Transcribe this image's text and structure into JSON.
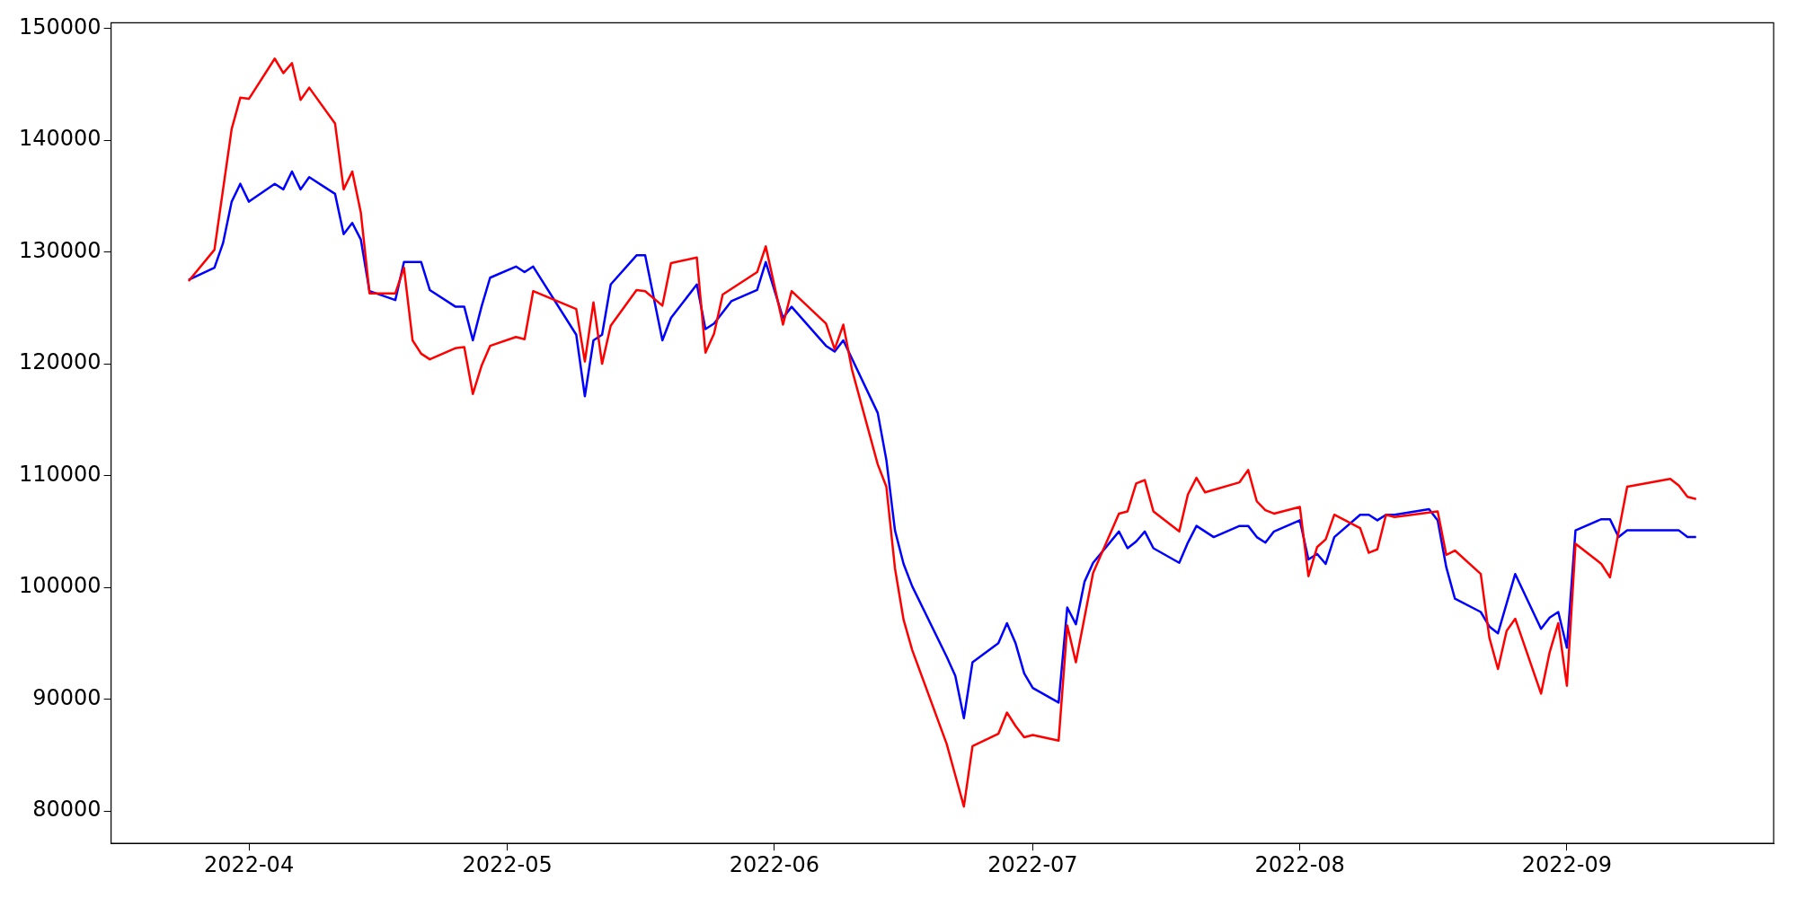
{
  "chart_data": {
    "type": "line",
    "xlim": [
      "2022-03-16",
      "2022-09-25"
    ],
    "ylim": [
      77100,
      150500
    ],
    "xticks": [
      "2022-04",
      "2022-05",
      "2022-06",
      "2022-07",
      "2022-08",
      "2022-09"
    ],
    "yticks": [
      80000,
      90000,
      100000,
      110000,
      120000,
      130000,
      140000,
      150000
    ],
    "grid": false,
    "legend": false,
    "marker": "none",
    "line_style": "solid",
    "series": [
      {
        "color": "#ff0000",
        "x": [
          "2022-03-25",
          "2022-03-28",
          "2022-03-30",
          "2022-03-31",
          "2022-04-01",
          "2022-04-04",
          "2022-04-05",
          "2022-04-06",
          "2022-04-07",
          "2022-04-08",
          "2022-04-11",
          "2022-04-12",
          "2022-04-13",
          "2022-04-14",
          "2022-04-15",
          "2022-04-18",
          "2022-04-19",
          "2022-04-20",
          "2022-04-21",
          "2022-04-22",
          "2022-04-25",
          "2022-04-26",
          "2022-04-27",
          "2022-04-28",
          "2022-04-29",
          "2022-05-02",
          "2022-05-03",
          "2022-05-04",
          "2022-05-09",
          "2022-05-10",
          "2022-05-11",
          "2022-05-12",
          "2022-05-13",
          "2022-05-16",
          "2022-05-17",
          "2022-05-19",
          "2022-05-20",
          "2022-05-23",
          "2022-05-24",
          "2022-05-25",
          "2022-05-26",
          "2022-05-30",
          "2022-05-31",
          "2022-06-02",
          "2022-06-03",
          "2022-06-07",
          "2022-06-08",
          "2022-06-09",
          "2022-06-10",
          "2022-06-13",
          "2022-06-14",
          "2022-06-15",
          "2022-06-16",
          "2022-06-17",
          "2022-06-21",
          "2022-06-22",
          "2022-06-23",
          "2022-06-24",
          "2022-06-27",
          "2022-06-28",
          "2022-06-29",
          "2022-06-30",
          "2022-07-01",
          "2022-07-04",
          "2022-07-05",
          "2022-07-06",
          "2022-07-08",
          "2022-07-11",
          "2022-07-12",
          "2022-07-13",
          "2022-07-14",
          "2022-07-15",
          "2022-07-18",
          "2022-07-19",
          "2022-07-20",
          "2022-07-21",
          "2022-07-25",
          "2022-07-26",
          "2022-07-27",
          "2022-07-28",
          "2022-07-29",
          "2022-08-01",
          "2022-08-02",
          "2022-08-03",
          "2022-08-04",
          "2022-08-05",
          "2022-08-08",
          "2022-08-09",
          "2022-08-10",
          "2022-08-11",
          "2022-08-12",
          "2022-08-17",
          "2022-08-18",
          "2022-08-19",
          "2022-08-22",
          "2022-08-23",
          "2022-08-24",
          "2022-08-25",
          "2022-08-26",
          "2022-08-29",
          "2022-08-30",
          "2022-08-31",
          "2022-09-01",
          "2022-09-02",
          "2022-09-05",
          "2022-09-06",
          "2022-09-08",
          "2022-09-13",
          "2022-09-14",
          "2022-09-15",
          "2022-09-16"
        ],
        "values": [
          127400,
          130200,
          141000,
          143800,
          143700,
          147300,
          146000,
          146900,
          143600,
          144700,
          141500,
          135600,
          137200,
          133500,
          126300,
          126300,
          128600,
          122100,
          120900,
          120400,
          121400,
          121500,
          117300,
          119800,
          121600,
          122400,
          122200,
          126500,
          124900,
          120200,
          125500,
          120000,
          123400,
          126600,
          126500,
          125200,
          129000,
          129500,
          121000,
          122700,
          126200,
          128200,
          130500,
          123500,
          126500,
          123600,
          121300,
          123500,
          119500,
          111000,
          109000,
          101700,
          97100,
          94400,
          86000,
          83200,
          80400,
          85800,
          86900,
          88800,
          87600,
          86600,
          86800,
          86300,
          96600,
          93300,
          101300,
          106600,
          106800,
          109300,
          109600,
          106800,
          105000,
          108300,
          109800,
          108500,
          109400,
          110500,
          107700,
          106900,
          106600,
          107200,
          101000,
          103600,
          104300,
          106500,
          105300,
          103100,
          103400,
          106500,
          106300,
          106800,
          102900,
          103300,
          101200,
          95500,
          92700,
          96100,
          97200,
          90500,
          94200,
          96800,
          91200,
          103900,
          102100,
          100900,
          109000,
          109700,
          109100,
          108100,
          107900
        ]
      },
      {
        "color": "#0000ff",
        "x": [
          "2022-03-25",
          "2022-03-28",
          "2022-03-29",
          "2022-03-30",
          "2022-03-31",
          "2022-04-01",
          "2022-04-04",
          "2022-04-05",
          "2022-04-06",
          "2022-04-07",
          "2022-04-08",
          "2022-04-11",
          "2022-04-12",
          "2022-04-13",
          "2022-04-14",
          "2022-04-15",
          "2022-04-18",
          "2022-04-19",
          "2022-04-21",
          "2022-04-22",
          "2022-04-25",
          "2022-04-26",
          "2022-04-27",
          "2022-04-28",
          "2022-04-29",
          "2022-05-02",
          "2022-05-03",
          "2022-05-04",
          "2022-05-09",
          "2022-05-10",
          "2022-05-11",
          "2022-05-12",
          "2022-05-13",
          "2022-05-16",
          "2022-05-17",
          "2022-05-19",
          "2022-05-20",
          "2022-05-23",
          "2022-05-24",
          "2022-05-25",
          "2022-05-27",
          "2022-05-30",
          "2022-05-31",
          "2022-06-02",
          "2022-06-03",
          "2022-06-07",
          "2022-06-08",
          "2022-06-09",
          "2022-06-13",
          "2022-06-14",
          "2022-06-15",
          "2022-06-16",
          "2022-06-17",
          "2022-06-21",
          "2022-06-22",
          "2022-06-23",
          "2022-06-24",
          "2022-06-27",
          "2022-06-28",
          "2022-06-29",
          "2022-06-30",
          "2022-07-01",
          "2022-07-04",
          "2022-07-05",
          "2022-07-06",
          "2022-07-07",
          "2022-07-08",
          "2022-07-11",
          "2022-07-12",
          "2022-07-13",
          "2022-07-14",
          "2022-07-15",
          "2022-07-18",
          "2022-07-19",
          "2022-07-20",
          "2022-07-22",
          "2022-07-25",
          "2022-07-26",
          "2022-07-27",
          "2022-07-28",
          "2022-07-29",
          "2022-08-01",
          "2022-08-02",
          "2022-08-03",
          "2022-08-04",
          "2022-08-05",
          "2022-08-08",
          "2022-08-09",
          "2022-08-10",
          "2022-08-11",
          "2022-08-12",
          "2022-08-16",
          "2022-08-17",
          "2022-08-18",
          "2022-08-19",
          "2022-08-22",
          "2022-08-23",
          "2022-08-24",
          "2022-08-26",
          "2022-08-29",
          "2022-08-30",
          "2022-08-31",
          "2022-09-01",
          "2022-09-02",
          "2022-09-05",
          "2022-09-06",
          "2022-09-07",
          "2022-09-08",
          "2022-09-14",
          "2022-09-15",
          "2022-09-16"
        ],
        "values": [
          127500,
          128600,
          130800,
          134500,
          136100,
          134500,
          136100,
          135600,
          137200,
          135600,
          136700,
          135200,
          131600,
          132600,
          131100,
          126500,
          125700,
          129100,
          129100,
          126600,
          125100,
          125100,
          122100,
          125100,
          127700,
          128700,
          128200,
          128700,
          122600,
          117100,
          122100,
          122600,
          127100,
          129700,
          129700,
          122100,
          124100,
          127100,
          123100,
          123600,
          125600,
          126600,
          129100,
          124100,
          125100,
          121600,
          121100,
          122100,
          115600,
          111400,
          105100,
          102100,
          100100,
          93800,
          92100,
          88300,
          93300,
          95000,
          96800,
          95000,
          92300,
          91000,
          89700,
          98200,
          96700,
          100500,
          102200,
          105000,
          103500,
          104100,
          105000,
          103500,
          102200,
          104000,
          105500,
          104500,
          105500,
          105500,
          104500,
          104000,
          105000,
          106000,
          102500,
          103000,
          102100,
          104500,
          106500,
          106500,
          106000,
          106500,
          106500,
          107000,
          106000,
          101800,
          99000,
          97800,
          96500,
          95900,
          101200,
          96300,
          97300,
          97800,
          94600,
          105100,
          106100,
          106100,
          104500,
          105100,
          105100,
          104500,
          104500
        ]
      }
    ]
  }
}
